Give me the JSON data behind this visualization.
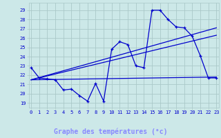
{
  "xlabel": "Graphe des températures (°c)",
  "bg_color": "#cce8e8",
  "grid_color": "#aac8c8",
  "line_color": "#0000cc",
  "axis_bg": "#1a1aaa",
  "axis_text_color": "#4444ff",
  "x_ticks": [
    0,
    1,
    2,
    3,
    4,
    5,
    6,
    7,
    8,
    9,
    10,
    11,
    12,
    13,
    14,
    15,
    16,
    17,
    18,
    19,
    20,
    21,
    22,
    23
  ],
  "y_ticks": [
    19,
    20,
    21,
    22,
    23,
    24,
    25,
    26,
    27,
    28,
    29
  ],
  "ylim": [
    18.5,
    29.8
  ],
  "xlim": [
    -0.3,
    23.3
  ],
  "main_line": {
    "x": [
      0,
      1,
      2,
      3,
      4,
      5,
      6,
      7,
      8,
      9,
      10,
      11,
      12,
      13,
      14,
      15,
      16,
      17,
      18,
      19,
      20,
      21,
      22,
      23
    ],
    "y": [
      22.8,
      21.7,
      21.6,
      21.5,
      20.4,
      20.5,
      19.8,
      19.2,
      21.1,
      19.2,
      24.8,
      25.6,
      25.3,
      23.0,
      22.8,
      29.0,
      29.0,
      28.0,
      27.2,
      27.1,
      26.2,
      24.1,
      21.7,
      21.7
    ]
  },
  "trend_lines": [
    {
      "x": [
        0,
        23
      ],
      "y": [
        21.5,
        21.8
      ]
    },
    {
      "x": [
        0,
        23
      ],
      "y": [
        21.5,
        26.3
      ]
    },
    {
      "x": [
        0,
        23
      ],
      "y": [
        21.5,
        27.1
      ]
    }
  ]
}
